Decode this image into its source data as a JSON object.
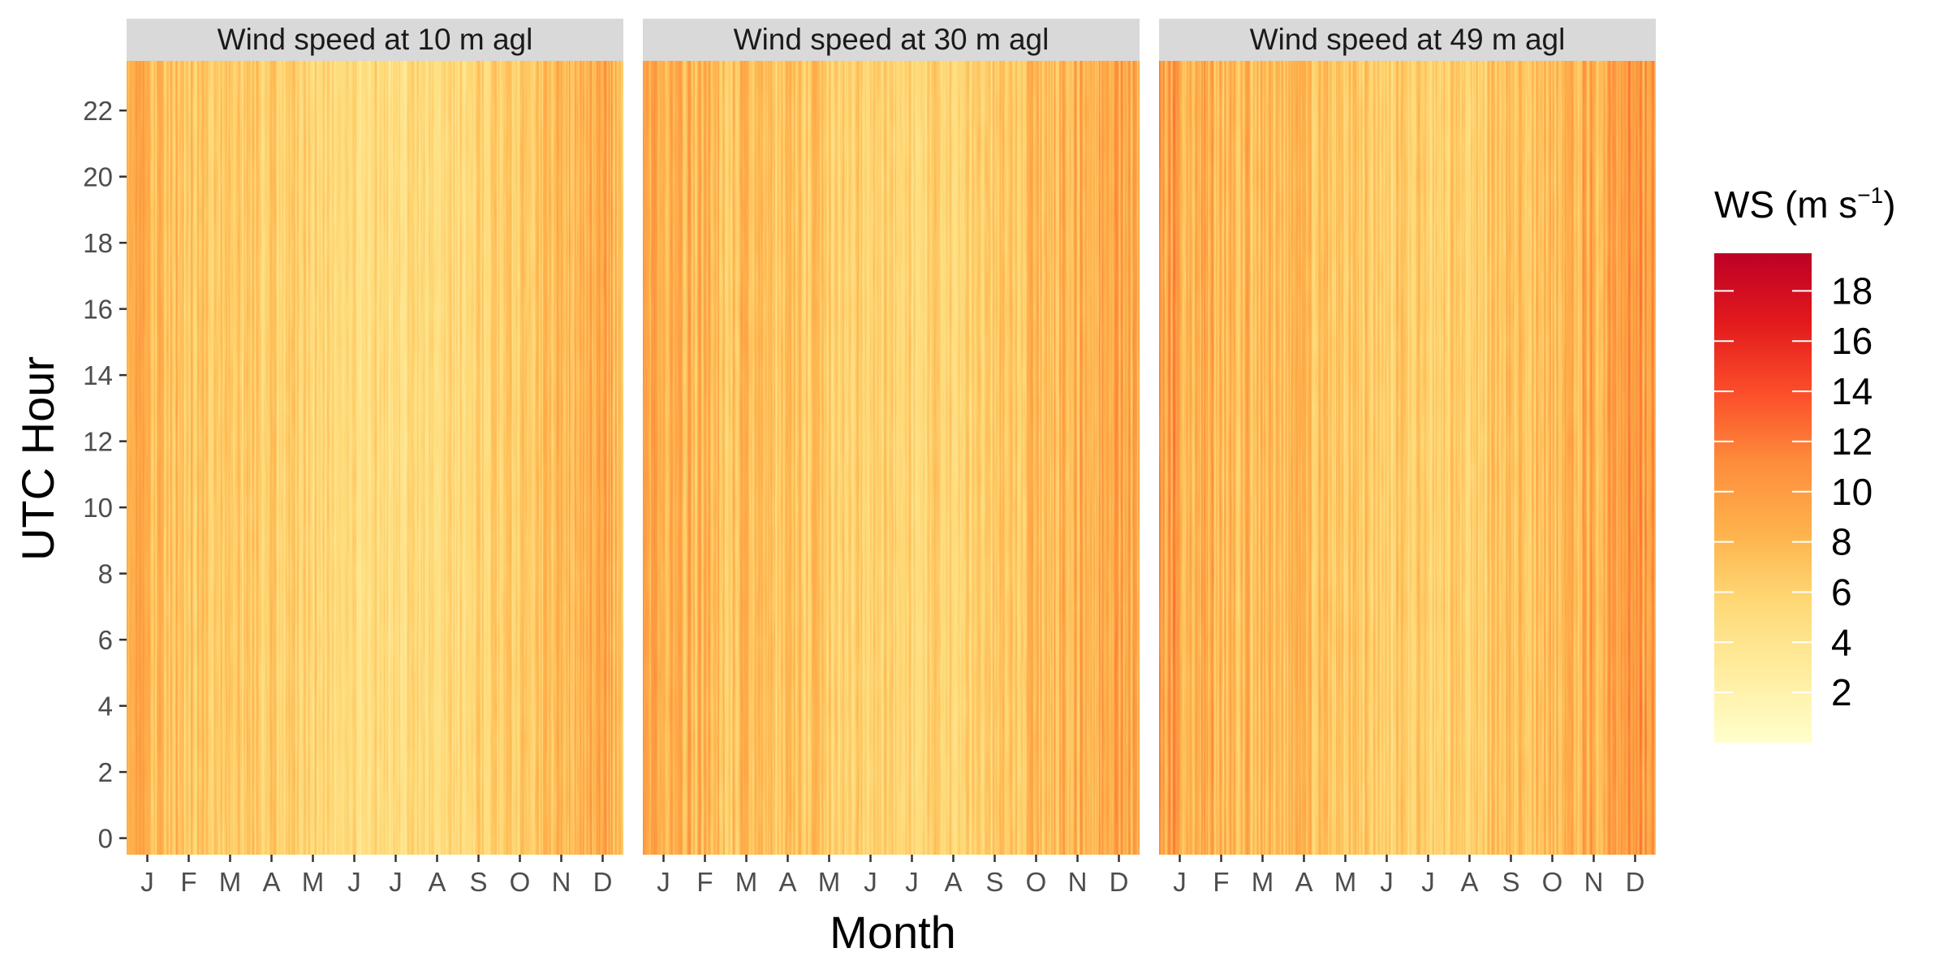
{
  "chart_data": {
    "type": "heatmap",
    "xlabel": "Month",
    "ylabel": "UTC Hour",
    "x_tick_labels": [
      "J",
      "F",
      "M",
      "A",
      "M",
      "J",
      "J",
      "A",
      "S",
      "O",
      "N",
      "D"
    ],
    "y_ticks": [
      0,
      2,
      4,
      6,
      8,
      10,
      12,
      14,
      16,
      18,
      20,
      22
    ],
    "y_tick_labels": [
      "0",
      "2",
      "4",
      "6",
      "8",
      "10",
      "12",
      "14",
      "16",
      "18",
      "20",
      "22"
    ],
    "ylim": [
      0,
      23
    ],
    "x_range_days": [
      1,
      365
    ],
    "panels": [
      {
        "title": "Wind speed at 10 m agl",
        "monthly_mean_ws": [
          7.5,
          6.9,
          6.3,
          6.0,
          5.3,
          4.9,
          4.8,
          4.9,
          5.6,
          6.4,
          7.3,
          8.4
        ]
      },
      {
        "title": "Wind speed at 30 m agl",
        "monthly_mean_ws": [
          8.4,
          7.8,
          7.2,
          6.9,
          6.2,
          5.7,
          5.6,
          5.8,
          6.5,
          7.3,
          8.2,
          9.3
        ]
      },
      {
        "title": "Wind speed at 49 m agl",
        "monthly_mean_ws": [
          8.9,
          8.2,
          7.6,
          7.3,
          6.6,
          6.1,
          6.0,
          6.2,
          6.9,
          7.7,
          8.7,
          9.8
        ]
      }
    ],
    "legend": {
      "title_main": "WS (m s",
      "title_sup": "−1",
      "title_close": ")",
      "ticks": [
        2,
        4,
        6,
        8,
        10,
        12,
        14,
        16,
        18
      ],
      "tick_labels": [
        "2",
        "4",
        "6",
        "8",
        "10",
        "12",
        "14",
        "16",
        "18"
      ],
      "range": [
        0,
        19.5
      ],
      "placement": "right"
    },
    "colors": {
      "scale": [
        "#ffffcc",
        "#ffeda0",
        "#fed976",
        "#feb24c",
        "#fd8d3c",
        "#fc4e2a",
        "#e31a1c",
        "#bd0026"
      ],
      "strip_bg": "#d9d9d9",
      "tick": "#333333"
    }
  }
}
